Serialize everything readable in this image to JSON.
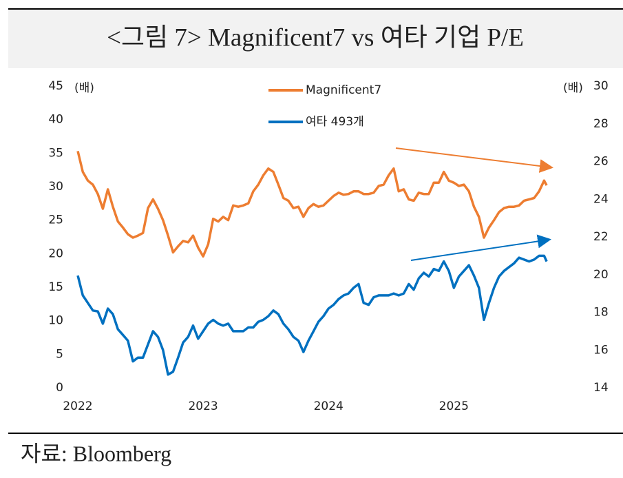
{
  "chart_data": {
    "type": "line",
    "title": "<그림 7> Magnificent7 vs 여타 기업 P/E",
    "source": "자료: Bloomberg",
    "y_label": "(배)",
    "y2_label": "(배)",
    "x": [
      2022,
      2022.04,
      2022.08,
      2022.12,
      2022.16,
      2022.2,
      2022.24,
      2022.28,
      2022.32,
      2022.36,
      2022.4,
      2022.44,
      2022.48,
      2022.52,
      2022.56,
      2022.6,
      2022.64,
      2022.68,
      2022.72,
      2022.76,
      2022.8,
      2022.84,
      2022.88,
      2022.92,
      2022.96,
      2023,
      2023.04,
      2023.08,
      2023.12,
      2023.16,
      2023.2,
      2023.24,
      2023.28,
      2023.32,
      2023.36,
      2023.4,
      2023.44,
      2023.48,
      2023.52,
      2023.56,
      2023.6,
      2023.64,
      2023.68,
      2023.72,
      2023.76,
      2023.8,
      2023.84,
      2023.88,
      2023.92,
      2023.96,
      2024,
      2024.04,
      2024.08,
      2024.12,
      2024.16,
      2024.2,
      2024.24,
      2024.28,
      2024.32,
      2024.36,
      2024.4,
      2024.44,
      2024.48,
      2024.52,
      2024.56,
      2024.6,
      2024.64,
      2024.68,
      2024.72,
      2024.76,
      2024.8,
      2024.84,
      2024.88,
      2024.92,
      2024.96,
      2025,
      2025.04,
      2025.08,
      2025.12,
      2025.16,
      2025.2,
      2025.24,
      2025.28,
      2025.32,
      2025.36,
      2025.4,
      2025.44,
      2025.48,
      2025.52,
      2025.56,
      2025.6,
      2025.64,
      2025.68,
      2025.72,
      2025.74
    ],
    "series": [
      {
        "name": "Magnificent7",
        "color": "#ed7d31",
        "axis": "y",
        "values": [
          35.3,
          32.2,
          30.9,
          30.3,
          28.9,
          26.7,
          29.6,
          27.0,
          24.8,
          23.9,
          22.9,
          22.4,
          22.7,
          23.1,
          26.8,
          28.1,
          26.7,
          25.0,
          22.7,
          20.2,
          21.1,
          21.9,
          21.7,
          22.7,
          20.9,
          19.6,
          21.4,
          25.2,
          24.8,
          25.5,
          25.0,
          27.2,
          27.0,
          27.2,
          27.5,
          29.3,
          30.3,
          31.7,
          32.7,
          32.2,
          30.3,
          28.3,
          27.9,
          26.8,
          27.0,
          25.5,
          26.8,
          27.4,
          27.0,
          27.2,
          27.9,
          28.6,
          29.1,
          28.8,
          28.9,
          29.3,
          29.3,
          28.9,
          28.9,
          29.1,
          30.1,
          30.3,
          31.7,
          32.7,
          29.3,
          29.6,
          28.1,
          27.9,
          29.1,
          28.9,
          28.9,
          30.6,
          30.6,
          32.2,
          30.9,
          30.6,
          30.1,
          30.3,
          29.3,
          27.0,
          25.5,
          22.4,
          23.9,
          25.0,
          26.2,
          26.8,
          27.0,
          27.0,
          27.2,
          27.9,
          28.1,
          28.3,
          29.3,
          30.9,
          30.2
        ]
      },
      {
        "name": "여타 493개",
        "color": "#0070c0",
        "axis": "y2",
        "values": [
          19.95,
          18.9,
          18.5,
          18.1,
          18.05,
          17.4,
          18.2,
          17.9,
          17.1,
          16.8,
          16.5,
          15.4,
          15.6,
          15.6,
          16.3,
          17.0,
          16.7,
          16.0,
          14.7,
          14.85,
          15.6,
          16.4,
          16.7,
          17.3,
          16.6,
          17.0,
          17.4,
          17.6,
          17.4,
          17.3,
          17.4,
          17.0,
          17.0,
          17.0,
          17.2,
          17.2,
          17.5,
          17.6,
          17.8,
          18.1,
          17.9,
          17.4,
          17.1,
          16.7,
          16.5,
          15.9,
          16.5,
          17.0,
          17.5,
          17.8,
          18.2,
          18.4,
          18.7,
          18.9,
          19.0,
          19.3,
          19.5,
          18.5,
          18.4,
          18.8,
          18.9,
          18.9,
          18.9,
          19.0,
          18.9,
          19.0,
          19.5,
          19.2,
          19.8,
          20.1,
          19.9,
          20.3,
          20.2,
          20.7,
          20.2,
          19.3,
          19.9,
          20.2,
          20.5,
          19.95,
          19.3,
          17.6,
          18.5,
          19.3,
          19.9,
          20.2,
          20.4,
          20.6,
          20.9,
          20.8,
          20.7,
          20.8,
          21.0,
          21.0,
          20.7
        ]
      }
    ],
    "xlim": [
      2022,
      2025.8
    ],
    "xticks": [
      2022,
      2023,
      2024,
      2025
    ],
    "ylim": [
      0,
      45
    ],
    "yticks": [
      0,
      5,
      10,
      15,
      20,
      25,
      30,
      35,
      40,
      45
    ],
    "y2lim": [
      14,
      30
    ],
    "y2ticks": [
      14,
      16,
      18,
      20,
      22,
      24,
      26,
      28,
      30
    ],
    "grid": false
  }
}
